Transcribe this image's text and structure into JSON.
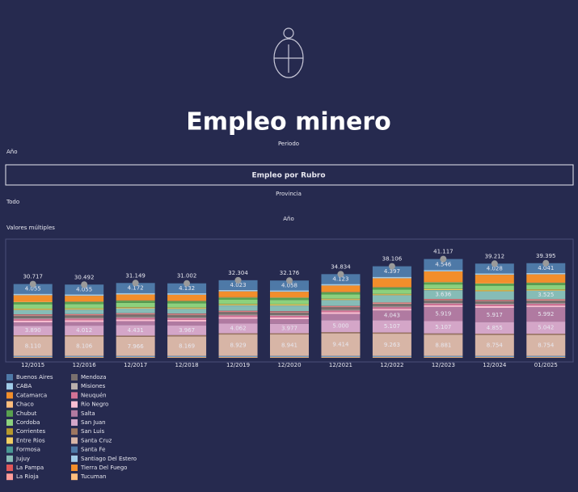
{
  "header": {
    "title": "Empleo minero"
  },
  "filters": {
    "period_label": "Periodo",
    "period_value": "Año",
    "button": "Empleo por Rubro",
    "province_label": "Provincia",
    "province_value": "Todo",
    "year_label": "Año",
    "year_value": "Valores múltiples"
  },
  "chart_data": {
    "type": "stacked_bar",
    "categories": [
      "12/2015",
      "12/2016",
      "12/2017",
      "12/2018",
      "12/2019",
      "12/2020",
      "12/2021",
      "12/2022",
      "12/2023",
      "12/2024",
      "01/2025"
    ],
    "ylim": [
      0,
      42000
    ],
    "totals": {
      "values": [
        30717,
        30492,
        31149,
        31002,
        32304,
        32176,
        34834,
        38106,
        41117,
        39212,
        39395
      ],
      "value_labels": [
        "30.717",
        "30.492",
        "31.149",
        "31.002",
        "32.304",
        "32.176",
        "34.834",
        "38.106",
        "41.117",
        "39.212",
        "39.395"
      ]
    },
    "series": [
      {
        "name": "Buenos Aires",
        "color": "#4e79a7",
        "values": [
          4055,
          4055,
          4172,
          4132,
          4023,
          4058,
          4123,
          4397,
          4546,
          4028,
          4041
        ],
        "value_labels": [
          "4.055",
          "4.055",
          "4.172",
          "4.132",
          "4.023",
          "4.058",
          "4.123",
          "4.397",
          "4.546",
          "4.028",
          "4.041"
        ]
      },
      {
        "name": "CABA",
        "color": "#a0cbe8",
        "values": [
          600,
          600,
          600,
          600,
          600,
          600,
          600,
          600,
          600,
          600,
          600
        ]
      },
      {
        "name": "Catamarca",
        "color": "#f28e2b",
        "values": [
          2712,
          2369,
          2430,
          2484,
          2440,
          2350,
          2647,
          3646,
          4378,
          3508,
          3391
        ]
      },
      {
        "name": "Chaco",
        "color": "#ffbe7d",
        "values": [
          150,
          150,
          150,
          150,
          150,
          150,
          150,
          150,
          150,
          150,
          150
        ]
      },
      {
        "name": "Chubut",
        "color": "#59a14f",
        "values": [
          900,
          900,
          900,
          900,
          900,
          900,
          900,
          900,
          900,
          900,
          900
        ]
      },
      {
        "name": "Cordoba",
        "color": "#8cd17d",
        "values": [
          1800,
          1800,
          1800,
          1800,
          1800,
          1800,
          1800,
          1800,
          1800,
          1800,
          1800
        ]
      },
      {
        "name": "Corrientes",
        "color": "#b6992d",
        "values": [
          150,
          150,
          150,
          150,
          150,
          150,
          150,
          150,
          150,
          150,
          150
        ]
      },
      {
        "name": "Entre Rios",
        "color": "#f1ce63",
        "values": [
          400,
          400,
          400,
          400,
          400,
          400,
          400,
          400,
          400,
          400,
          400
        ]
      },
      {
        "name": "Formosa",
        "color": "#499894",
        "values": [
          50,
          50,
          50,
          50,
          50,
          50,
          50,
          50,
          50,
          50,
          50
        ]
      },
      {
        "name": "Jujuy",
        "color": "#86bcb6",
        "values": [
          1800,
          1800,
          1900,
          1900,
          2200,
          2300,
          2400,
          3000,
          3636,
          3500,
          3525
        ],
        "value_labels": [
          null,
          null,
          null,
          null,
          null,
          null,
          null,
          null,
          "3.636",
          null,
          "3.525"
        ]
      },
      {
        "name": "La Pampa",
        "color": "#e15759",
        "values": [
          200,
          200,
          200,
          200,
          200,
          200,
          200,
          200,
          200,
          200,
          200
        ]
      },
      {
        "name": "La Rioja",
        "color": "#ff9d9a",
        "values": [
          300,
          300,
          300,
          300,
          300,
          300,
          300,
          300,
          300,
          300,
          300
        ]
      },
      {
        "name": "Mendoza",
        "color": "#79706e",
        "values": [
          1100,
          1100,
          1100,
          1100,
          1100,
          1100,
          1100,
          1100,
          1100,
          1100,
          1100
        ]
      },
      {
        "name": "Misiones",
        "color": "#bab0ac",
        "values": [
          300,
          300,
          300,
          300,
          300,
          300,
          300,
          300,
          300,
          300,
          300
        ]
      },
      {
        "name": "Neuquén",
        "color": "#d37295",
        "values": [
          700,
          700,
          700,
          700,
          700,
          700,
          700,
          700,
          700,
          700,
          700
        ]
      },
      {
        "name": "Rio Negro",
        "color": "#fabfd2",
        "values": [
          700,
          700,
          700,
          700,
          700,
          700,
          700,
          700,
          700,
          700,
          700
        ]
      },
      {
        "name": "Salta",
        "color": "#b07aa1",
        "values": [
          1500,
          1500,
          1600,
          1700,
          2000,
          1900,
          2600,
          4043,
          5919,
          5917,
          5992
        ],
        "value_labels": [
          null,
          null,
          null,
          null,
          null,
          null,
          null,
          "4.043",
          "5.919",
          "5.917",
          "5.992"
        ]
      },
      {
        "name": "San Juan",
        "color": "#d4a6c8",
        "values": [
          3890,
          4012,
          4431,
          3967,
          4062,
          3977,
          5000,
          5107,
          5107,
          4855,
          5042
        ],
        "value_labels": [
          "3.890",
          "4.012",
          "4.431",
          "3.967",
          "4.062",
          "3.977",
          "5.000",
          "5.107",
          "5.107",
          "4.855",
          "5.042"
        ]
      },
      {
        "name": "San Luis",
        "color": "#9d7660",
        "values": [
          500,
          500,
          500,
          500,
          500,
          500,
          500,
          500,
          500,
          500,
          500
        ]
      },
      {
        "name": "Santa Cruz",
        "color": "#d7b5a6",
        "values": [
          8110,
          8106,
          7966,
          8169,
          8929,
          8941,
          9414,
          9263,
          8881,
          8754,
          8754
        ],
        "value_labels": [
          "8.110",
          "8.106",
          "7.966",
          "8.169",
          "8.929",
          "8.941",
          "9.414",
          "9.263",
          "8.881",
          "8.754",
          "8.754"
        ]
      },
      {
        "name": "Santa Fe",
        "color": "#4e79a7",
        "values": [
          300,
          300,
          300,
          300,
          300,
          300,
          300,
          300,
          300,
          300,
          300
        ]
      },
      {
        "name": "Santiago Del Estero",
        "color": "#a0cbe8",
        "values": [
          200,
          200,
          200,
          200,
          200,
          200,
          200,
          200,
          200,
          200,
          200
        ]
      },
      {
        "name": "Tierra Del Fuego",
        "color": "#f28e2b",
        "values": [
          100,
          100,
          100,
          100,
          100,
          100,
          100,
          100,
          100,
          100,
          100
        ]
      },
      {
        "name": "Tucuman",
        "color": "#ffbe7d",
        "values": [
          200,
          200,
          200,
          200,
          200,
          200,
          200,
          200,
          200,
          200,
          200
        ]
      }
    ]
  }
}
